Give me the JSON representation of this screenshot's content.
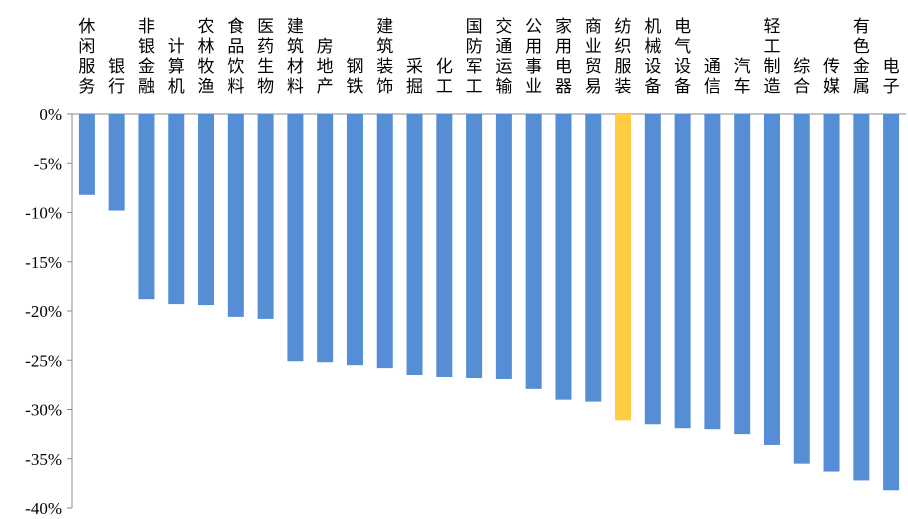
{
  "chart_data": {
    "type": "bar",
    "title": "",
    "xlabel": "",
    "ylabel": "",
    "ylim": [
      -40,
      0
    ],
    "yticks": [
      0,
      -5,
      -10,
      -15,
      -20,
      -25,
      -30,
      -35,
      -40
    ],
    "tick_suffix": "%",
    "categories": [
      "休闲服务",
      "银行",
      "非银金融",
      "计算机",
      "农林牧渔",
      "食品饮料",
      "医药生物",
      "建筑材料",
      "房地产",
      "钢铁",
      "建筑装饰",
      "采掘",
      "化工",
      "国防军工",
      "交通运输",
      "公用事业",
      "家用电器",
      "商业贸易",
      "纺织服装",
      "机械设备",
      "电气设备",
      "通信",
      "汽车",
      "轻工制造",
      "综合",
      "传媒",
      "有色金属",
      "电子"
    ],
    "values": [
      -8.2,
      -9.8,
      -18.8,
      -19.3,
      -19.4,
      -20.6,
      -20.8,
      -25.1,
      -25.2,
      -25.5,
      -25.8,
      -26.5,
      -26.7,
      -26.8,
      -26.9,
      -27.9,
      -29.0,
      -29.2,
      -31.1,
      -31.5,
      -31.9,
      -32.0,
      -32.5,
      -33.6,
      -35.5,
      -36.3,
      -37.2,
      -38.2
    ],
    "highlight_category": "纺织服装",
    "colors": {
      "bar": "#558ed5",
      "highlight": "#ffcc44",
      "axis": "#888888"
    },
    "grid": false,
    "legend": "none"
  }
}
